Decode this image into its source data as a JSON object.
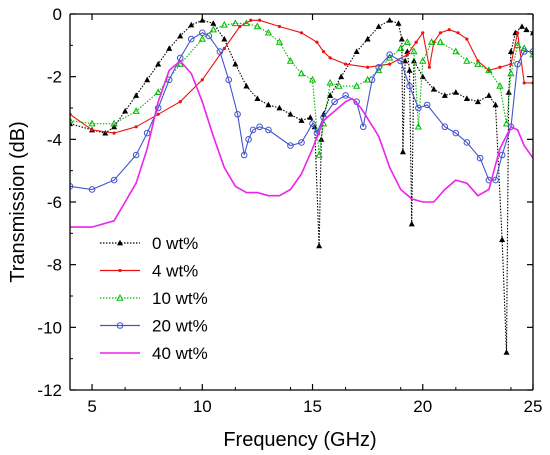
{
  "chart_data": {
    "type": "line",
    "xlabel": "Frequency (GHz)",
    "ylabel": "Transmission (dB)",
    "xlim": [
      4,
      25
    ],
    "ylim": [
      -12,
      0
    ],
    "xticks": [
      5,
      10,
      15,
      20,
      25
    ],
    "yticks": [
      0,
      -2,
      -4,
      -6,
      -8,
      -10,
      -12
    ],
    "grid": false,
    "legend_position": "lower-left",
    "series": [
      {
        "name": "0 wt%",
        "color": "#000000",
        "marker": "filled-triangle",
        "line_style": "dotted",
        "x": [
          4,
          5,
          5.6,
          6,
          6.5,
          7,
          7.5,
          8,
          8.5,
          9,
          9.5,
          10,
          10.5,
          11,
          11.5,
          12,
          12.5,
          13,
          13.5,
          14,
          14.5,
          14.9,
          15.1,
          15.3,
          15.4,
          15.5,
          15.8,
          16.3,
          17,
          17.5,
          18,
          18.5,
          18.9,
          19.05,
          19.1,
          19.2,
          19.3,
          19.4,
          19.5,
          19.6,
          20,
          20.5,
          21,
          21.5,
          22,
          22.5,
          23,
          23.3,
          23.6,
          23.8,
          23.9,
          24,
          24.2,
          24.5,
          24.7,
          25
        ],
        "y": [
          -3.5,
          -3.7,
          -3.8,
          -3.6,
          -3.1,
          -2.6,
          -2.1,
          -1.6,
          -1.1,
          -0.7,
          -0.35,
          -0.2,
          -0.3,
          -0.8,
          -1.6,
          -2.3,
          -2.7,
          -2.9,
          -3.0,
          -3.2,
          -3.4,
          -3.3,
          -3.6,
          -7.4,
          -4.0,
          -3.2,
          -2.6,
          -2.0,
          -1.2,
          -0.8,
          -0.4,
          -0.2,
          -0.3,
          -0.8,
          -4.4,
          -1.5,
          -1.2,
          -1.8,
          -6.7,
          -1.5,
          -2.0,
          -2.4,
          -2.6,
          -2.5,
          -2.7,
          -2.8,
          -2.6,
          -2.9,
          -7.2,
          -10.8,
          -2.5,
          -1.2,
          -0.6,
          -0.4,
          -0.5,
          -0.6
        ]
      },
      {
        "name": "4 wt%",
        "color": "#ee1111",
        "marker": "small-dot",
        "line_style": "solid",
        "x": [
          4,
          5,
          6,
          7,
          8,
          9,
          10,
          11,
          11.7,
          12.2,
          12.6,
          13.5,
          14.5,
          15.2,
          15.5,
          15.8,
          16.5,
          17.5,
          18.5,
          19.3,
          19.7,
          20,
          20.3,
          20.5,
          20.8,
          21.2,
          21.6,
          22,
          22.5,
          23,
          23.5,
          24,
          24.3,
          24.6,
          25
        ],
        "y": [
          -3.2,
          -3.7,
          -3.8,
          -3.6,
          -3.2,
          -2.8,
          -2.1,
          -1.1,
          -0.4,
          -0.2,
          -0.2,
          -0.4,
          -0.6,
          -0.9,
          -1.2,
          -1.4,
          -1.6,
          -1.7,
          -1.6,
          -1.3,
          -0.9,
          -0.6,
          -1.7,
          -0.9,
          -0.6,
          -0.5,
          -0.6,
          -0.8,
          -1.5,
          -1.8,
          -1.7,
          -1.6,
          -0.6,
          -2.2,
          -2.2
        ]
      },
      {
        "name": "10 wt%",
        "color": "#00bb00",
        "marker": "open-triangle",
        "line_style": "dotted",
        "x": [
          4,
          5,
          6,
          7,
          8,
          9,
          10,
          10.5,
          11,
          11.5,
          12,
          12.5,
          13,
          13.5,
          14,
          14.5,
          15,
          15.3,
          15.5,
          15.8,
          16.2,
          17,
          17.5,
          18,
          18.5,
          19,
          19.3,
          19.6,
          19.8,
          20,
          20.4,
          20.8,
          21.5,
          22,
          22.5,
          23,
          23.5,
          23.8,
          24,
          24.3,
          24.6,
          25
        ],
        "y": [
          -3.4,
          -3.5,
          -3.5,
          -3.1,
          -2.5,
          -1.6,
          -0.8,
          -0.5,
          -0.35,
          -0.3,
          -0.3,
          -0.4,
          -0.6,
          -0.9,
          -1.5,
          -1.9,
          -2.1,
          -4.5,
          -3.5,
          -2.2,
          -2.3,
          -2.3,
          -2.1,
          -1.8,
          -1.4,
          -1.1,
          -0.9,
          -1.2,
          -3.6,
          -1.5,
          -0.9,
          -0.9,
          -1.2,
          -1.5,
          -1.6,
          -1.8,
          -2.3,
          -3.5,
          -1.9,
          -1.0,
          -1.1,
          -1.3
        ]
      },
      {
        "name": "20 wt%",
        "color": "#4455cc",
        "marker": "open-circle",
        "line_style": "solid",
        "x": [
          4,
          5,
          6,
          7,
          7.5,
          8,
          8.5,
          9,
          9.5,
          10,
          10.3,
          10.8,
          11.2,
          11.6,
          11.9,
          12.1,
          12.3,
          12.6,
          13,
          14,
          14.5,
          15,
          15.2,
          15.5,
          16,
          16.5,
          17,
          17.3,
          17.7,
          18,
          18.5,
          19,
          19.4,
          19.8,
          20.2,
          21,
          21.5,
          22,
          22.6,
          23,
          23.3,
          23.6,
          24,
          24.3,
          24.6,
          25
        ],
        "y": [
          -5.5,
          -5.6,
          -5.3,
          -4.5,
          -3.8,
          -3.0,
          -2.1,
          -1.4,
          -0.8,
          -0.6,
          -0.7,
          -1.2,
          -2.1,
          -3.2,
          -4.5,
          -4.0,
          -3.7,
          -3.6,
          -3.7,
          -4.2,
          -4.1,
          -3.5,
          -3.8,
          -3.3,
          -2.8,
          -2.6,
          -2.8,
          -3.6,
          -2.1,
          -1.7,
          -1.3,
          -1.5,
          -2.3,
          -3.0,
          -2.9,
          -3.6,
          -3.8,
          -4.1,
          -4.6,
          -5.3,
          -5.3,
          -4.5,
          -3.6,
          -1.6,
          -1.2,
          -1.2
        ]
      },
      {
        "name": "40 wt%",
        "color": "#ee22ee",
        "marker": "none",
        "line_style": "solid",
        "x": [
          4,
          5,
          6,
          7,
          7.5,
          8,
          8.5,
          9,
          9.5,
          10,
          10.5,
          11,
          11.5,
          12,
          12.5,
          13,
          13.5,
          14,
          14.5,
          15,
          15.5,
          16,
          16.5,
          16.8,
          17.2,
          18,
          18.5,
          19,
          19.5,
          20,
          20.5,
          21,
          21.5,
          22,
          22.5,
          23,
          23.5,
          24,
          24.3,
          24.6,
          25
        ],
        "y": [
          -6.8,
          -6.8,
          -6.6,
          -5.4,
          -4.3,
          -2.8,
          -1.8,
          -1.5,
          -1.9,
          -2.8,
          -3.9,
          -4.9,
          -5.5,
          -5.7,
          -5.7,
          -5.8,
          -5.8,
          -5.6,
          -5.1,
          -4.3,
          -3.4,
          -3.1,
          -2.8,
          -2.7,
          -3.0,
          -3.9,
          -4.9,
          -5.6,
          -5.9,
          -6.0,
          -6.0,
          -5.6,
          -5.3,
          -5.4,
          -5.8,
          -5.6,
          -4.3,
          -3.6,
          -3.7,
          -4.2,
          -4.6
        ]
      }
    ]
  }
}
